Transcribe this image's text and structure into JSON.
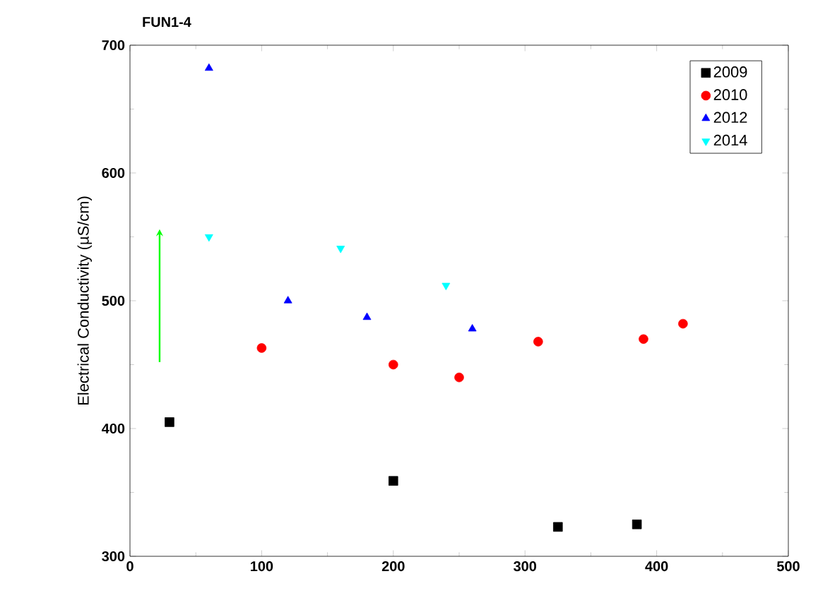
{
  "chart_data": {
    "type": "scatter",
    "title": "FUN1-4",
    "ylabel": "Electrical Conductivity (µS/cm)",
    "xlim": [
      0,
      500
    ],
    "xticks": [
      0,
      100,
      200,
      300,
      400,
      500
    ],
    "ylim": [
      300,
      700
    ],
    "yticks": [
      300,
      400,
      500,
      600,
      700
    ],
    "legend": "top right",
    "series": [
      {
        "name": "2009",
        "color": "#000000",
        "marker": "square",
        "x": [
          30,
          200,
          325,
          385
        ],
        "values": [
          405,
          359,
          323,
          325
        ]
      },
      {
        "name": "2010",
        "color": "#ff0000",
        "marker": "circle",
        "x": [
          100,
          200,
          250,
          310,
          390,
          420
        ],
        "values": [
          463,
          450,
          440,
          468,
          470,
          482
        ]
      },
      {
        "name": "2012",
        "color": "#0000ff",
        "marker": "triangle",
        "x": [
          60,
          120,
          180,
          260
        ],
        "values": [
          682,
          500,
          487,
          478
        ]
      },
      {
        "name": "2014",
        "color": "#00ffff",
        "marker": "triangle-down",
        "x": [
          60,
          160,
          240
        ],
        "values": [
          550,
          541,
          512
        ]
      }
    ]
  }
}
